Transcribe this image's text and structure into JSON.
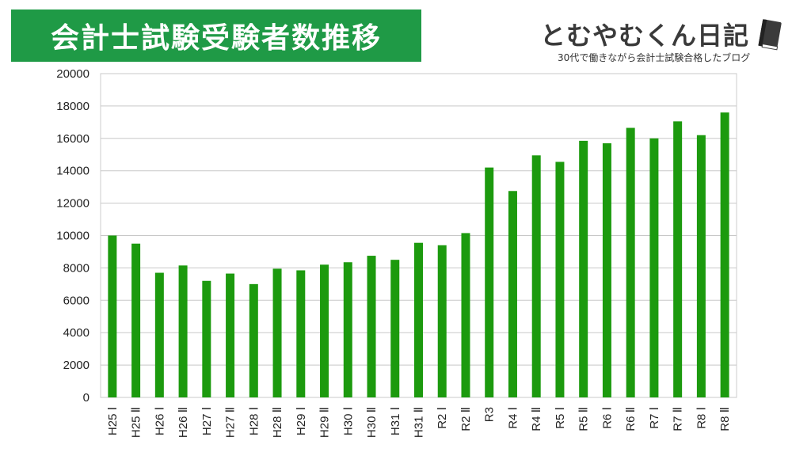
{
  "header": {
    "title": "会計士試験受験者数推移",
    "brand_name": "とむやむくん日記",
    "brand_tagline": "30代で働きながら会計士試験合格したブログ",
    "title_bg": "#1f9a46"
  },
  "chart_data": {
    "type": "bar",
    "title": "",
    "xlabel": "",
    "ylabel": "",
    "ylim": [
      0,
      20000
    ],
    "yticks": [
      0,
      2000,
      4000,
      6000,
      8000,
      10000,
      12000,
      14000,
      16000,
      18000,
      20000
    ],
    "grid": true,
    "bar_color": "#1c9a0e",
    "categories": [
      "H25 Ⅰ",
      "H25 Ⅱ",
      "H26 Ⅰ",
      "H26 Ⅱ",
      "H27 Ⅰ",
      "H27 Ⅱ",
      "H28 Ⅰ",
      "H28 Ⅱ",
      "H29 Ⅰ",
      "H29 Ⅱ",
      "H30 Ⅰ",
      "H30 Ⅱ",
      "H31 Ⅰ",
      "H31 Ⅱ",
      "R2 Ⅰ",
      "R2 Ⅱ",
      "R3",
      "R4 Ⅰ",
      "R4 Ⅱ",
      "R5 Ⅰ",
      "R5 Ⅱ",
      "R6 Ⅰ",
      "R6 Ⅱ",
      "R7 Ⅰ",
      "R7 Ⅱ",
      "R8 Ⅰ",
      "R8 Ⅱ"
    ],
    "values": [
      10000,
      9500,
      7700,
      8150,
      7200,
      7650,
      7000,
      7950,
      7850,
      8200,
      8350,
      8750,
      8500,
      9550,
      9400,
      10150,
      14200,
      12750,
      14950,
      14550,
      15850,
      15700,
      16650,
      16000,
      17050,
      16200,
      17600
    ]
  }
}
